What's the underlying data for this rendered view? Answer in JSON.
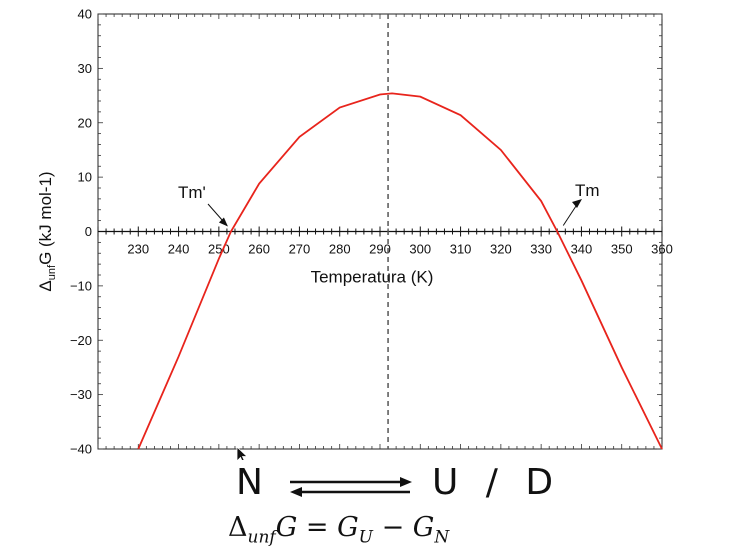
{
  "chart_data": {
    "type": "line",
    "xlabel": "Temperatura (K)",
    "ylabel_main": "Δ",
    "ylabel_sub": "unf",
    "ylabel_rest": "G (kJ mol-1)",
    "xlim": [
      220,
      360
    ],
    "ylim": [
      -40,
      40
    ],
    "x_ticks": [
      230,
      240,
      250,
      260,
      270,
      280,
      290,
      300,
      310,
      320,
      330,
      340,
      350,
      360
    ],
    "y_ticks": [
      -40,
      -30,
      -20,
      -10,
      0,
      10,
      20,
      30,
      40
    ],
    "y_tick_labels": [
      "−40",
      "−30",
      "−20",
      "−10",
      "0",
      "10",
      "20",
      "30",
      "40"
    ],
    "grid": false,
    "series": [
      {
        "color": "#e8241c",
        "x": [
          230,
          240,
          250,
          253,
          260,
          270,
          280,
          290,
          293,
          300,
          310,
          320,
          330,
          334,
          340,
          350,
          360
        ],
        "y": [
          -40,
          -23,
          -5,
          0,
          8.8,
          17.4,
          22.8,
          25.2,
          25.4,
          24.8,
          21.4,
          15,
          5.6,
          0,
          -9,
          -25,
          -40
        ]
      }
    ],
    "vline": {
      "x": 292
    },
    "annotations": [
      {
        "label": "Tm'",
        "x": 253,
        "y": 0
      },
      {
        "label": "Tm",
        "x": 334,
        "y": 0
      }
    ]
  },
  "equilibrium": {
    "left": "N",
    "right": "U / D"
  },
  "formula": "ΔunfG = GU − GN",
  "formula_parts": {
    "delta": "Δ",
    "unf": "unf",
    "G": "G",
    "eq": " = ",
    "GU": "G",
    "U": "U",
    "minus": " − ",
    "GN": "G",
    "N": "N"
  }
}
